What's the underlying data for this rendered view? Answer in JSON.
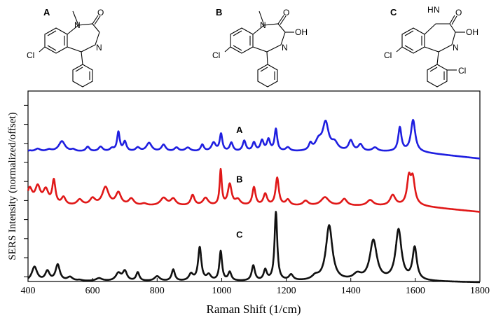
{
  "structures": [
    {
      "label": "A",
      "atoms": {
        "n_top": "N",
        "n_ring": "N",
        "cl": "Cl",
        "o": "O",
        "methyl": "/"
      }
    },
    {
      "label": "B",
      "atoms": {
        "n_top": "N",
        "n_ring": "N",
        "cl": "Cl",
        "o": "O",
        "oh": "OH",
        "methyl": "/"
      }
    },
    {
      "label": "C",
      "atoms": {
        "n_top": "H",
        "n_ring": "N",
        "cl": "Cl",
        "cl2": "Cl",
        "o": "O",
        "oh": "OH",
        "methyl": "N"
      }
    }
  ],
  "chart_data": {
    "type": "line",
    "xlabel": "Raman Shift (1/cm)",
    "ylabel": "SERS Intensity (normalized/offset)",
    "xlim": [
      400,
      1800
    ],
    "ylim": [
      0,
      10
    ],
    "x_ticks": [
      400,
      600,
      800,
      1000,
      1200,
      1400,
      1600,
      1800
    ],
    "y_ticks": [
      0,
      1,
      2,
      3,
      4,
      5,
      6,
      7,
      8,
      9
    ],
    "series": [
      {
        "name": "A",
        "color": "#1f1fe0",
        "baseline": 6.8,
        "label_at": [
          1055,
          7.8
        ],
        "end_slope": [
          1600,
          0.0,
          1800,
          -0.35
        ],
        "peaks": [
          [
            405,
            0.05,
            8
          ],
          [
            430,
            0.15,
            10
          ],
          [
            465,
            0.1,
            10
          ],
          [
            505,
            0.55,
            12
          ],
          [
            540,
            0.1,
            8
          ],
          [
            585,
            0.25,
            7
          ],
          [
            625,
            0.25,
            8
          ],
          [
            660,
            0.15,
            8
          ],
          [
            680,
            1.0,
            5
          ],
          [
            700,
            0.5,
            6
          ],
          [
            740,
            0.2,
            8
          ],
          [
            775,
            0.45,
            10
          ],
          [
            820,
            0.35,
            8
          ],
          [
            860,
            0.2,
            8
          ],
          [
            895,
            0.2,
            10
          ],
          [
            940,
            0.35,
            6
          ],
          [
            975,
            0.45,
            8
          ],
          [
            998,
            0.9,
            5
          ],
          [
            1030,
            0.45,
            6
          ],
          [
            1070,
            0.55,
            6
          ],
          [
            1100,
            0.45,
            6
          ],
          [
            1125,
            0.55,
            6
          ],
          [
            1145,
            0.6,
            6
          ],
          [
            1168,
            1.15,
            5
          ],
          [
            1205,
            0.2,
            8
          ],
          [
            1275,
            0.35,
            6
          ],
          [
            1300,
            0.5,
            12
          ],
          [
            1322,
            1.45,
            11
          ],
          [
            1350,
            0.4,
            12
          ],
          [
            1400,
            0.55,
            8
          ],
          [
            1430,
            0.35,
            8
          ],
          [
            1475,
            0.2,
            10
          ],
          [
            1552,
            1.25,
            6
          ],
          [
            1593,
            1.65,
            8
          ]
        ]
      },
      {
        "name": "B",
        "color": "#e01818",
        "baseline": 3.95,
        "label_at": [
          1055,
          5.2
        ],
        "end_slope": [
          1610,
          0.0,
          1800,
          -0.3
        ],
        "peaks": [
          [
            405,
            0.85,
            10
          ],
          [
            430,
            0.9,
            10
          ],
          [
            455,
            0.75,
            10
          ],
          [
            480,
            1.25,
            6
          ],
          [
            510,
            0.4,
            8
          ],
          [
            560,
            0.3,
            10
          ],
          [
            600,
            0.35,
            10
          ],
          [
            640,
            0.95,
            12
          ],
          [
            680,
            0.65,
            10
          ],
          [
            720,
            0.35,
            10
          ],
          [
            760,
            0.1,
            10
          ],
          [
            820,
            0.4,
            12
          ],
          [
            850,
            0.35,
            10
          ],
          [
            910,
            0.55,
            7
          ],
          [
            950,
            0.4,
            10
          ],
          [
            997,
            1.85,
            4
          ],
          [
            1025,
            1.1,
            7
          ],
          [
            1050,
            0.3,
            10
          ],
          [
            1100,
            0.95,
            6
          ],
          [
            1135,
            0.6,
            7
          ],
          [
            1172,
            1.45,
            6
          ],
          [
            1205,
            0.3,
            8
          ],
          [
            1260,
            0.25,
            10
          ],
          [
            1320,
            0.45,
            15
          ],
          [
            1380,
            0.35,
            10
          ],
          [
            1460,
            0.3,
            12
          ],
          [
            1530,
            0.55,
            10
          ],
          [
            1580,
            1.3,
            7
          ],
          [
            1592,
            1.35,
            8
          ]
        ]
      },
      {
        "name": "C",
        "color": "#111111",
        "baseline": 0.0,
        "label_at": [
          1055,
          2.3
        ],
        "end_slope": [
          1620,
          0.0,
          1800,
          -0.05
        ],
        "peaks": [
          [
            420,
            0.75,
            10
          ],
          [
            460,
            0.5,
            8
          ],
          [
            492,
            0.85,
            8
          ],
          [
            530,
            0.2,
            10
          ],
          [
            560,
            0.05,
            10
          ],
          [
            620,
            0.15,
            12
          ],
          [
            680,
            0.4,
            10
          ],
          [
            700,
            0.5,
            8
          ],
          [
            740,
            0.45,
            6
          ],
          [
            800,
            0.25,
            10
          ],
          [
            850,
            0.6,
            6
          ],
          [
            905,
            0.35,
            8
          ],
          [
            932,
            1.75,
            6
          ],
          [
            960,
            0.3,
            8
          ],
          [
            997,
            1.55,
            5
          ],
          [
            1025,
            0.45,
            6
          ],
          [
            1098,
            0.8,
            6
          ],
          [
            1135,
            0.55,
            6
          ],
          [
            1168,
            3.6,
            5
          ],
          [
            1215,
            0.3,
            8
          ],
          [
            1290,
            0.2,
            12
          ],
          [
            1333,
            2.9,
            12
          ],
          [
            1420,
            0.3,
            15
          ],
          [
            1470,
            2.1,
            13
          ],
          [
            1548,
            2.65,
            11
          ],
          [
            1598,
            1.7,
            8
          ]
        ]
      }
    ]
  }
}
